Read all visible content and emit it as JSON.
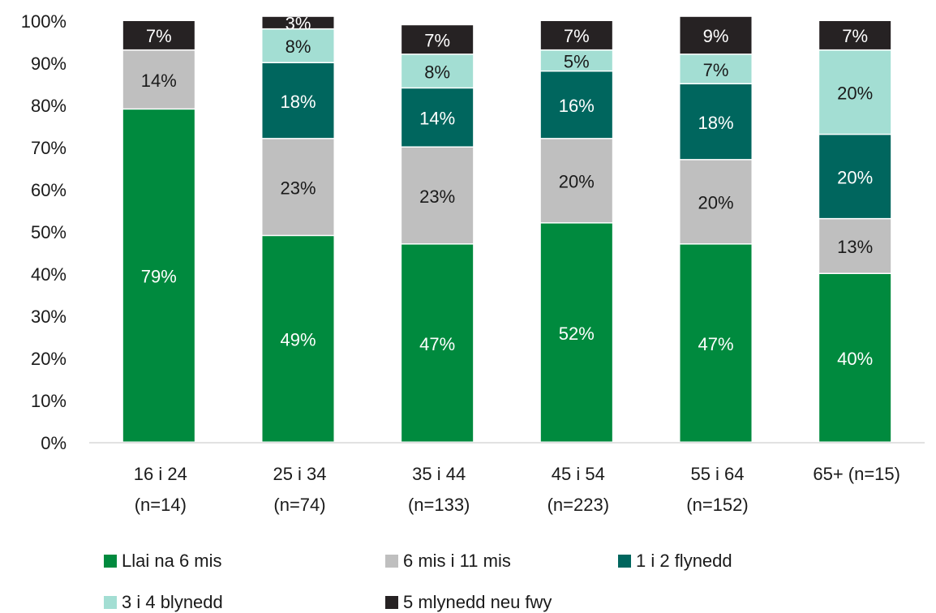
{
  "chart_data": {
    "type": "stacked-bar",
    "categories": [
      [
        "16 i 24",
        "(n=14)"
      ],
      [
        "25 i 34",
        "(n=74)"
      ],
      [
        "35 i 44",
        "(n=133)"
      ],
      [
        "45 i 54",
        "(n=223)"
      ],
      [
        "55 i 64",
        "(n=152)"
      ],
      [
        "65+ (n=15)",
        ""
      ]
    ],
    "yticks": [
      "0%",
      "10%",
      "20%",
      "30%",
      "40%",
      "50%",
      "60%",
      "70%",
      "80%",
      "90%",
      "100%"
    ],
    "ylim": [
      0,
      100
    ],
    "grid": false,
    "legend_position": "bottom",
    "series": [
      {
        "name": "Llai na 6 mis",
        "color": "#008a3e",
        "label_color": "#ffffff",
        "values": [
          79,
          49,
          47,
          52,
          47,
          40
        ],
        "labels": [
          "79%",
          "49%",
          "47%",
          "52%",
          "47%",
          "40%"
        ]
      },
      {
        "name": "6 mis i 11 mis",
        "color": "#bfbfbf",
        "label_color": "#1a1a1a",
        "values": [
          14,
          23,
          23,
          20,
          20,
          13
        ],
        "labels": [
          "14%",
          "23%",
          "23%",
          "20%",
          "20%",
          "13%"
        ]
      },
      {
        "name": "1 i 2 flynedd",
        "color": "#00665e",
        "label_color": "#ffffff",
        "values": [
          0,
          18,
          14,
          16,
          18,
          20
        ],
        "labels": [
          "",
          "18%",
          "14%",
          "16%",
          "18%",
          "20%"
        ]
      },
      {
        "name": "3 i 4 blynedd",
        "color": "#a3ded3",
        "label_color": "#1a1a1a",
        "values": [
          0,
          8,
          8,
          5,
          7,
          20
        ],
        "labels": [
          "",
          "8%",
          "8%",
          "5%",
          "7%",
          "20%"
        ]
      },
      {
        "name": "5 mlynedd neu fwy",
        "color": "#262223",
        "label_color": "#ffffff",
        "values": [
          7,
          3,
          7,
          7,
          9,
          7
        ],
        "labels": [
          "7%",
          "3%",
          "7%",
          "7%",
          "9%",
          "7%"
        ]
      }
    ]
  }
}
